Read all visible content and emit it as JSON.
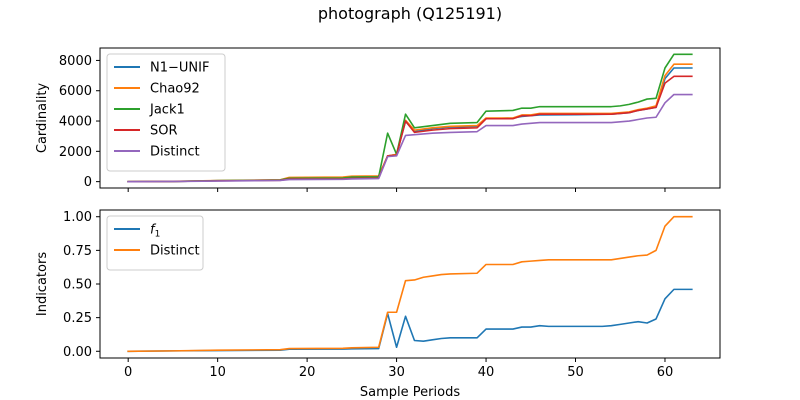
{
  "title": "photograph (Q125191)",
  "colors": {
    "blue": "#1f77b4",
    "orange": "#ff7f0e",
    "green": "#2ca02c",
    "red": "#d62728",
    "purple": "#9467bd"
  },
  "chart_data": [
    {
      "type": "line",
      "xlabel": "",
      "ylabel": "Cardinality",
      "xlim": [
        -3.15,
        66.15
      ],
      "ylim": [
        -420,
        8820
      ],
      "xticks": [
        0,
        10,
        20,
        30,
        40,
        50,
        60
      ],
      "xtick_labels": [],
      "yticks": [
        0,
        2000,
        4000,
        6000,
        8000
      ],
      "ytick_labels": [
        "0",
        "2000",
        "4000",
        "6000",
        "8000"
      ],
      "legend": "upper-left",
      "series": [
        {
          "name": "N1−UNIF",
          "color": "#1f77b4",
          "x": [
            0,
            5,
            10,
            17,
            18,
            24,
            25,
            28,
            29,
            30,
            31,
            32,
            34,
            36,
            39,
            40,
            43,
            44,
            45,
            46,
            50,
            54,
            55,
            56,
            57,
            58,
            59,
            60,
            61,
            62,
            63
          ],
          "y": [
            0,
            10,
            60,
            100,
            180,
            200,
            230,
            260,
            1700,
            1800,
            3980,
            3300,
            3500,
            3600,
            3650,
            4150,
            4200,
            4300,
            4350,
            4400,
            4420,
            4450,
            4500,
            4550,
            4700,
            4800,
            4900,
            6800,
            7500,
            7500,
            7500
          ]
        },
        {
          "name": "Chao92",
          "color": "#ff7f0e",
          "x": [
            0,
            5,
            10,
            17,
            18,
            24,
            25,
            28,
            29,
            30,
            31,
            32,
            34,
            36,
            39,
            40,
            43,
            44,
            45,
            46,
            50,
            54,
            55,
            56,
            57,
            58,
            59,
            60,
            61,
            62,
            63
          ],
          "y": [
            0,
            20,
            70,
            120,
            280,
            300,
            360,
            380,
            1700,
            1800,
            4050,
            3400,
            3550,
            3650,
            3700,
            4200,
            4200,
            4400,
            4400,
            4500,
            4500,
            4500,
            4550,
            4600,
            4750,
            4850,
            5000,
            7000,
            7750,
            7750,
            7750
          ]
        },
        {
          "name": "Jack1",
          "color": "#2ca02c",
          "x": [
            0,
            5,
            10,
            17,
            18,
            24,
            25,
            28,
            29,
            30,
            31,
            32,
            34,
            36,
            39,
            40,
            43,
            44,
            45,
            46,
            50,
            54,
            55,
            56,
            57,
            58,
            59,
            60,
            61,
            62,
            63
          ],
          "y": [
            0,
            15,
            60,
            110,
            220,
            240,
            300,
            320,
            3200,
            1800,
            4450,
            3550,
            3700,
            3850,
            3900,
            4650,
            4700,
            4850,
            4850,
            4950,
            4950,
            4950,
            5000,
            5100,
            5250,
            5450,
            5500,
            7500,
            8400,
            8400,
            8400
          ]
        },
        {
          "name": "SOR",
          "color": "#d62728",
          "x": [
            0,
            5,
            10,
            17,
            18,
            24,
            25,
            28,
            29,
            30,
            31,
            32,
            34,
            36,
            39,
            40,
            43,
            44,
            45,
            46,
            50,
            54,
            55,
            56,
            57,
            58,
            59,
            60,
            61,
            62,
            63
          ],
          "y": [
            0,
            10,
            50,
            90,
            170,
            180,
            210,
            240,
            1700,
            1750,
            4000,
            3250,
            3400,
            3500,
            3550,
            4150,
            4150,
            4350,
            4350,
            4450,
            4450,
            4450,
            4500,
            4550,
            4700,
            4800,
            4900,
            6500,
            6950,
            6950,
            6950
          ]
        },
        {
          "name": "Distinct",
          "color": "#9467bd",
          "x": [
            0,
            5,
            10,
            17,
            18,
            24,
            25,
            28,
            29,
            30,
            31,
            32,
            34,
            36,
            39,
            40,
            43,
            44,
            45,
            46,
            50,
            54,
            55,
            56,
            57,
            58,
            59,
            60,
            61,
            62,
            63
          ],
          "y": [
            0,
            10,
            40,
            80,
            140,
            150,
            180,
            200,
            1650,
            1700,
            3050,
            3100,
            3200,
            3250,
            3300,
            3700,
            3700,
            3800,
            3850,
            3900,
            3900,
            3900,
            3950,
            4000,
            4100,
            4200,
            4250,
            5200,
            5750,
            5750,
            5750
          ]
        }
      ]
    },
    {
      "type": "line",
      "xlabel": "Sample Periods",
      "ylabel": "Indicators",
      "xlim": [
        -3.15,
        66.15
      ],
      "ylim": [
        -0.05,
        1.05
      ],
      "xticks": [
        0,
        10,
        20,
        30,
        40,
        50,
        60
      ],
      "xtick_labels": [
        "0",
        "10",
        "20",
        "30",
        "40",
        "50",
        "60"
      ],
      "yticks": [
        0,
        0.25,
        0.5,
        0.75,
        1.0
      ],
      "ytick_labels": [
        "0.00",
        "0.25",
        "0.50",
        "0.75",
        "1.00"
      ],
      "legend": "upper-left",
      "series": [
        {
          "name": "f1",
          "color": "#1f77b4",
          "x": [
            0,
            5,
            10,
            17,
            18,
            24,
            25,
            28,
            29,
            30,
            31,
            32,
            33,
            34,
            35,
            36,
            39,
            40,
            43,
            44,
            45,
            46,
            47,
            50,
            53,
            54,
            55,
            56,
            57,
            58,
            59,
            60,
            61,
            62,
            63
          ],
          "y": [
            0.0,
            0.003,
            0.005,
            0.008,
            0.015,
            0.016,
            0.018,
            0.02,
            0.28,
            0.03,
            0.26,
            0.08,
            0.075,
            0.085,
            0.095,
            0.1,
            0.1,
            0.165,
            0.165,
            0.18,
            0.18,
            0.19,
            0.185,
            0.185,
            0.185,
            0.19,
            0.2,
            0.21,
            0.22,
            0.21,
            0.24,
            0.39,
            0.46,
            0.46,
            0.46
          ]
        },
        {
          "name": "Distinct",
          "color": "#ff7f0e",
          "x": [
            0,
            5,
            10,
            17,
            18,
            24,
            25,
            28,
            29,
            30,
            31,
            32,
            33,
            34,
            35,
            36,
            39,
            40,
            43,
            44,
            45,
            46,
            47,
            50,
            53,
            54,
            55,
            56,
            57,
            58,
            59,
            60,
            61,
            62,
            63
          ],
          "y": [
            0.0,
            0.003,
            0.008,
            0.012,
            0.02,
            0.022,
            0.026,
            0.03,
            0.29,
            0.29,
            0.525,
            0.53,
            0.55,
            0.56,
            0.57,
            0.575,
            0.58,
            0.645,
            0.645,
            0.665,
            0.67,
            0.675,
            0.68,
            0.68,
            0.68,
            0.68,
            0.69,
            0.7,
            0.71,
            0.715,
            0.75,
            0.93,
            1.0,
            1.0,
            1.0
          ]
        }
      ]
    }
  ]
}
